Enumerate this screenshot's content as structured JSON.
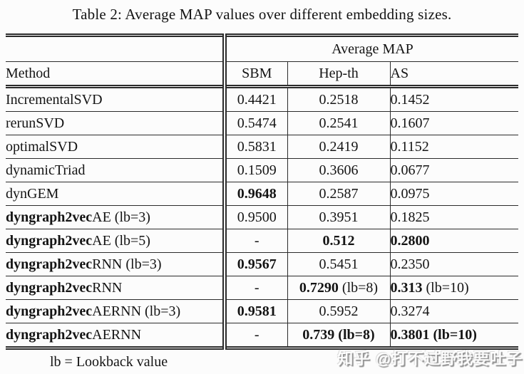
{
  "title": "Table 2: Average MAP values over different embedding sizes.",
  "table": {
    "group_header": "Average MAP",
    "columns": [
      "Method",
      "SBM",
      "Hep-th",
      "AS"
    ],
    "rows": [
      {
        "method": {
          "b": "",
          "r": "IncrementalSVD"
        },
        "sbm": {
          "b": "",
          "r": "0.4421"
        },
        "hepth": {
          "b": "",
          "r": "0.2518"
        },
        "as": {
          "b": "",
          "r": "0.1452"
        }
      },
      {
        "method": {
          "b": "",
          "r": "rerunSVD"
        },
        "sbm": {
          "b": "",
          "r": "0.5474"
        },
        "hepth": {
          "b": "",
          "r": "0.2541"
        },
        "as": {
          "b": "",
          "r": "0.1607"
        }
      },
      {
        "method": {
          "b": "",
          "r": "optimalSVD"
        },
        "sbm": {
          "b": "",
          "r": "0.5831"
        },
        "hepth": {
          "b": "",
          "r": "0.2419"
        },
        "as": {
          "b": "",
          "r": "0.1152"
        }
      },
      {
        "method": {
          "b": "",
          "r": "dynamicTriad"
        },
        "sbm": {
          "b": "",
          "r": "0.1509"
        },
        "hepth": {
          "b": "",
          "r": "0.3606"
        },
        "as": {
          "b": "",
          "r": "0.0677"
        }
      },
      {
        "method": {
          "b": "",
          "r": "dynGEM"
        },
        "sbm": {
          "b": "0.9648",
          "r": ""
        },
        "hepth": {
          "b": "",
          "r": "0.2587"
        },
        "as": {
          "b": "",
          "r": "0.0975"
        }
      },
      {
        "method": {
          "b": "dyngraph2vec",
          "r": "AE (lb=3)"
        },
        "sbm": {
          "b": "",
          "r": "0.9500"
        },
        "hepth": {
          "b": "",
          "r": "0.3951"
        },
        "as": {
          "b": "",
          "r": "0.1825"
        }
      },
      {
        "method": {
          "b": "dyngraph2vec",
          "r": "AE (lb=5)"
        },
        "sbm": {
          "b": "",
          "r": "-"
        },
        "hepth": {
          "b": "0.512",
          "r": ""
        },
        "as": {
          "b": "0.2800",
          "r": ""
        }
      },
      {
        "method": {
          "b": "dyngraph2vec",
          "r": "RNN (lb=3)"
        },
        "sbm": {
          "b": "0.9567",
          "r": ""
        },
        "hepth": {
          "b": "",
          "r": "0.5451"
        },
        "as": {
          "b": "",
          "r": "0.2350"
        }
      },
      {
        "method": {
          "b": "dyngraph2vec",
          "r": "RNN"
        },
        "sbm": {
          "b": "",
          "r": "-"
        },
        "hepth": {
          "b": "0.7290",
          "r": " (lb=8)"
        },
        "as": {
          "b": "0.313",
          "r": " (lb=10)"
        }
      },
      {
        "method": {
          "b": "dyngraph2vec",
          "r": "AERNN (lb=3)"
        },
        "sbm": {
          "b": "0.9581",
          "r": ""
        },
        "hepth": {
          "b": "",
          "r": "0.5952"
        },
        "as": {
          "b": "",
          "r": "0.3274"
        }
      },
      {
        "method": {
          "b": "dyngraph2vec",
          "r": "AERNN"
        },
        "sbm": {
          "b": "",
          "r": "-"
        },
        "hepth": {
          "b": "0.739 (lb=8)",
          "r": ""
        },
        "as": {
          "b": "0.3801 (lb=10)",
          "r": ""
        }
      }
    ]
  },
  "footnote": "lb = Lookback value",
  "watermark": "知乎 @打不过野我要吐子",
  "colors": {
    "rule": "#2b2b2b",
    "text": "#141414",
    "background": "#fcfcfc"
  }
}
